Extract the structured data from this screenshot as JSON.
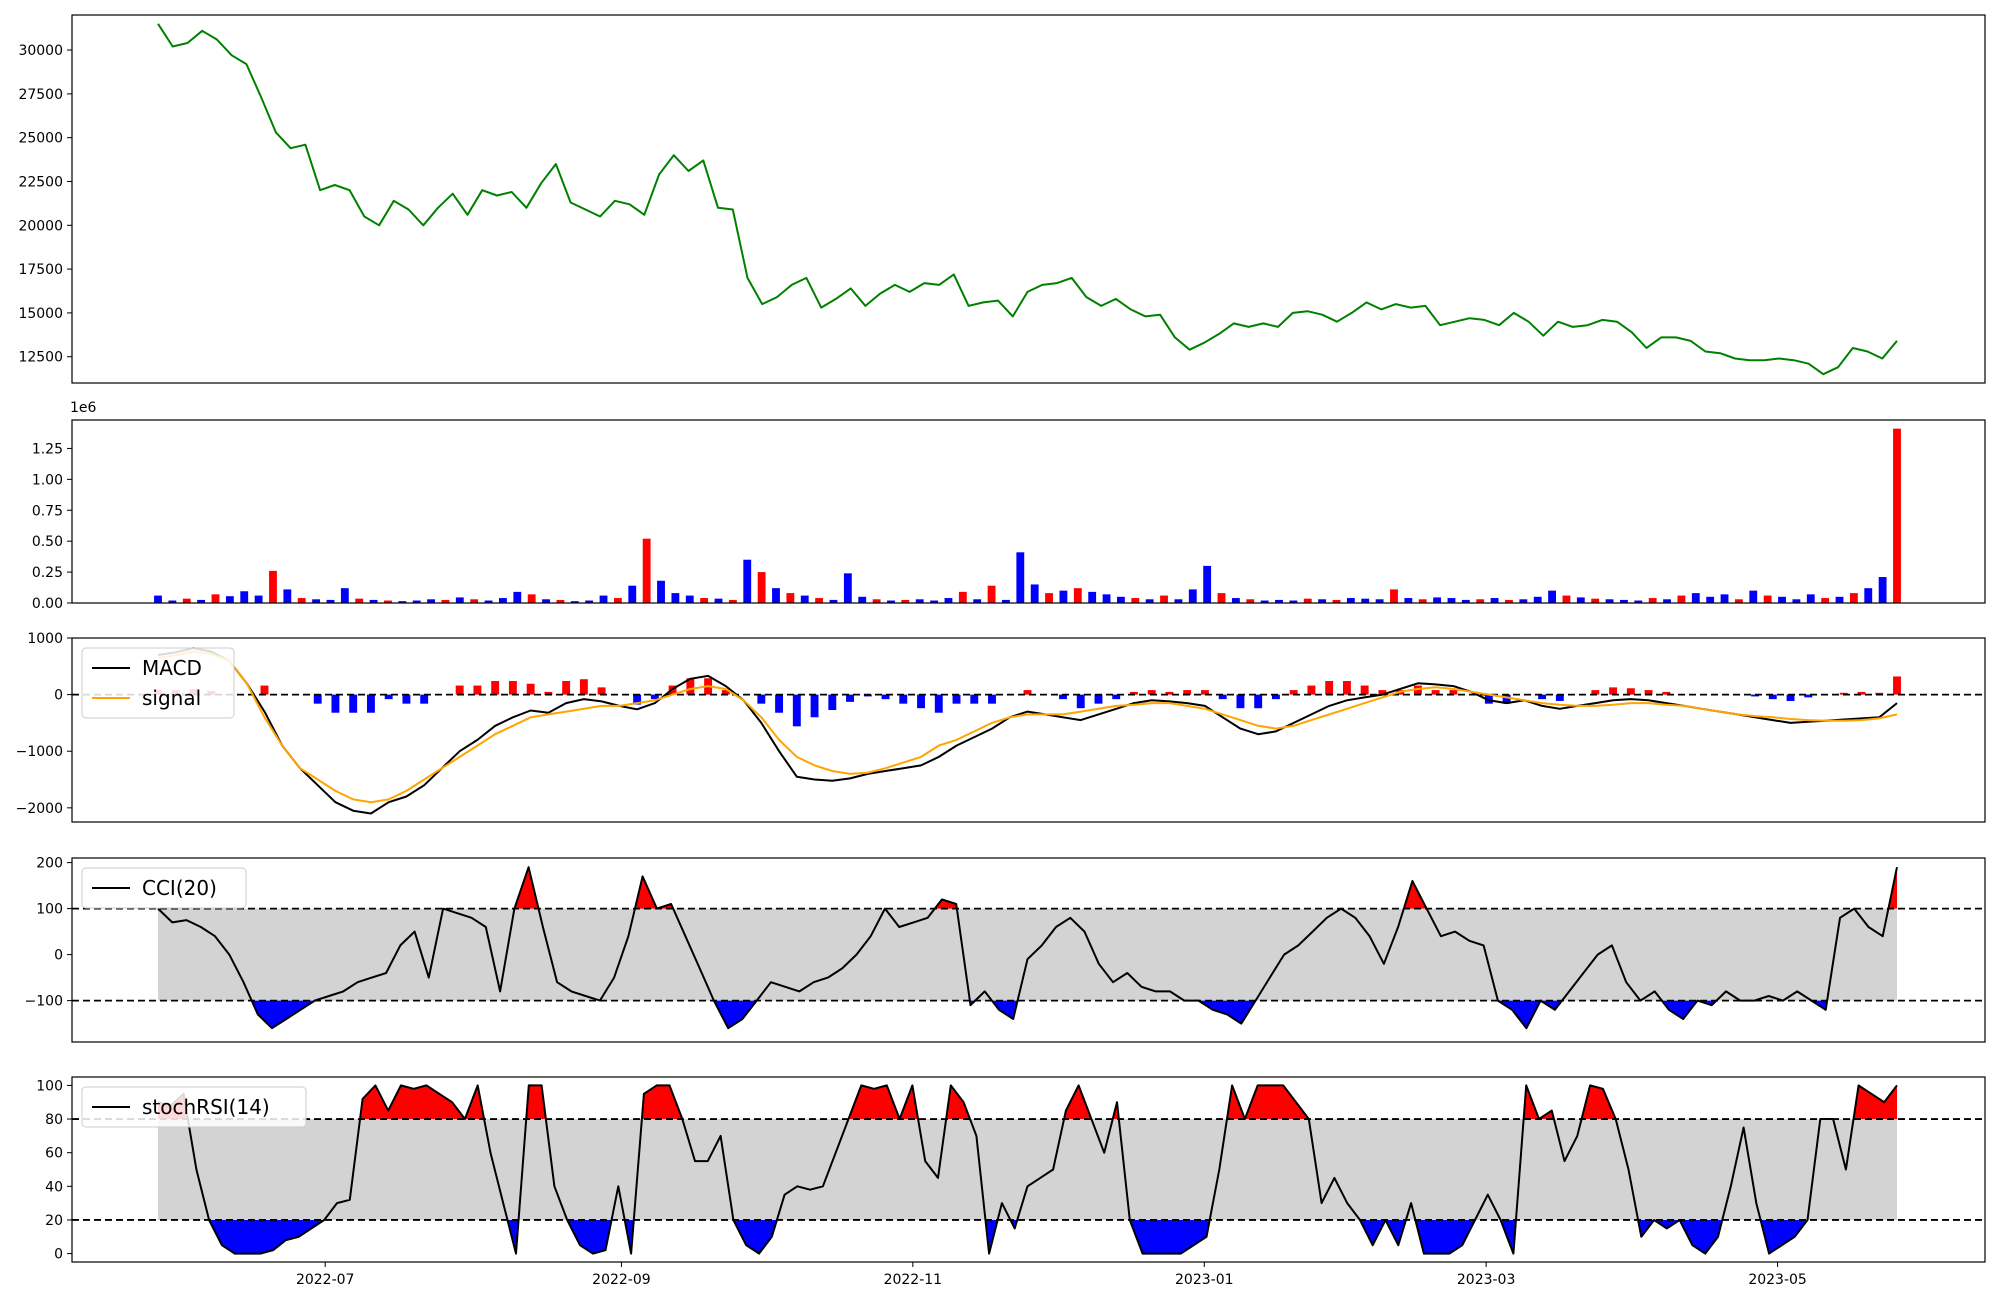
{
  "chart_data": [
    {
      "type": "line",
      "panel": "price",
      "series": [
        {
          "color": "#008000",
          "values": [
            31500,
            30200,
            30400,
            31100,
            30600,
            29700,
            29200,
            27300,
            25300,
            24400,
            24600,
            22000,
            22300,
            22000,
            20500,
            20000,
            21400,
            20900,
            20000,
            21000,
            21800,
            20600,
            22000,
            21700,
            21900,
            21000,
            22400,
            23500,
            21300,
            20900,
            20500,
            21400,
            21200,
            20600,
            22900,
            24000,
            23100,
            23700,
            21000,
            20900,
            17000,
            15500,
            15900,
            16600,
            17000,
            15300,
            15800,
            16400,
            15400,
            16100,
            16600,
            16200,
            16700,
            16600,
            17200,
            15400,
            15600,
            15700,
            14800,
            16200,
            16600,
            16700,
            17000,
            15900,
            15400,
            15800,
            15200,
            14800,
            14900,
            13600,
            12900,
            13300,
            13800,
            14400,
            14200,
            14400,
            14200,
            15000,
            15100,
            14900,
            14500,
            15000,
            15600,
            15200,
            15500,
            15300,
            15400,
            14300,
            14500,
            14700,
            14600,
            14300,
            15000,
            14500,
            13700,
            14500,
            14200,
            14300,
            14600,
            14500,
            13900,
            13000,
            13600,
            13600,
            13400,
            12800,
            12700,
            12400,
            12300,
            12300,
            12400,
            12300,
            12100,
            11500,
            11900,
            13000,
            12800,
            12400,
            13400
          ]
        }
      ],
      "x_date_range": [
        "2022-05-27",
        "2023-05-26"
      ],
      "ylim": [
        11000,
        32000
      ],
      "yticks": [
        12500,
        15000,
        17500,
        20000,
        22500,
        25000,
        27500,
        30000
      ]
    },
    {
      "type": "bar",
      "panel": "volume",
      "offset_label": "1e6",
      "colors": {
        "up": "#ff0000",
        "down": "#0000ff"
      },
      "values": [
        60000,
        20000,
        35000,
        25000,
        70000,
        55000,
        95000,
        60000,
        260000,
        110000,
        40000,
        30000,
        25000,
        120000,
        35000,
        25000,
        20000,
        15000,
        20000,
        30000,
        25000,
        45000,
        30000,
        20000,
        40000,
        90000,
        70000,
        30000,
        25000,
        15000,
        20000,
        60000,
        40000,
        140000,
        520000,
        180000,
        80000,
        60000,
        40000,
        35000,
        25000,
        350000,
        250000,
        120000,
        80000,
        60000,
        40000,
        25000,
        240000,
        50000,
        30000,
        20000,
        25000,
        30000,
        20000,
        40000,
        90000,
        30000,
        140000,
        25000,
        410000,
        150000,
        80000,
        100000,
        120000,
        90000,
        70000,
        50000,
        40000,
        30000,
        60000,
        30000,
        110000,
        300000,
        80000,
        40000,
        30000,
        20000,
        25000,
        20000,
        35000,
        30000,
        25000,
        40000,
        35000,
        30000,
        110000,
        40000,
        30000,
        45000,
        40000,
        25000,
        30000,
        40000,
        25000,
        30000,
        50000,
        100000,
        60000,
        45000,
        35000,
        30000,
        25000,
        20000,
        40000,
        30000,
        60000,
        80000,
        50000,
        70000,
        30000,
        100000,
        60000,
        50000,
        30000,
        70000,
        40000,
        50000,
        80000,
        120000,
        210000,
        1410000
      ],
      "ylim": [
        0,
        1480000
      ],
      "yticks": [
        0,
        250000,
        500000,
        750000,
        1000000,
        1250000
      ],
      "ytick_labels": [
        "0.00",
        "0.25",
        "0.50",
        "0.75",
        "1.00",
        "1.25"
      ]
    },
    {
      "type": "line",
      "panel": "macd",
      "legend": "upper-left",
      "series": [
        {
          "name": "MACD",
          "color": "#000000",
          "values": [
            700,
            750,
            820,
            760,
            600,
            200,
            -300,
            -900,
            -1300,
            -1600,
            -1900,
            -2050,
            -2100,
            -1900,
            -1800,
            -1600,
            -1300,
            -1000,
            -800,
            -550,
            -400,
            -280,
            -320,
            -150,
            -80,
            -120,
            -200,
            -260,
            -150,
            100,
            280,
            330,
            150,
            -100,
            -500,
            -1000,
            -1450,
            -1500,
            -1520,
            -1480,
            -1400,
            -1350,
            -1300,
            -1250,
            -1100,
            -900,
            -750,
            -600,
            -400,
            -300,
            -350,
            -400,
            -450,
            -350,
            -250,
            -150,
            -100,
            -120,
            -150,
            -200,
            -400,
            -600,
            -700,
            -650,
            -500,
            -350,
            -200,
            -100,
            -50,
            0,
            100,
            200,
            180,
            150,
            50,
            -100,
            -150,
            -100,
            -200,
            -250,
            -200,
            -150,
            -100,
            -80,
            -100,
            -150,
            -200,
            -250,
            -300,
            -350,
            -400,
            -450,
            -500,
            -480,
            -460,
            -440,
            -420,
            -400,
            -150
          ]
        },
        {
          "name": "signal",
          "color": "#ffa500",
          "values": [
            650,
            700,
            760,
            720,
            600,
            200,
            -400,
            -900,
            -1300,
            -1500,
            -1700,
            -1850,
            -1900,
            -1850,
            -1700,
            -1500,
            -1300,
            -1100,
            -900,
            -700,
            -550,
            -400,
            -350,
            -300,
            -250,
            -200,
            -200,
            -150,
            -100,
            0,
            100,
            150,
            100,
            -100,
            -400,
            -800,
            -1100,
            -1250,
            -1350,
            -1400,
            -1380,
            -1300,
            -1200,
            -1100,
            -900,
            -800,
            -650,
            -500,
            -400,
            -350,
            -350,
            -350,
            -300,
            -250,
            -200,
            -180,
            -150,
            -150,
            -200,
            -250,
            -350,
            -450,
            -550,
            -600,
            -550,
            -450,
            -350,
            -250,
            -150,
            -50,
            50,
            100,
            130,
            100,
            50,
            0,
            -50,
            -100,
            -150,
            -180,
            -200,
            -200,
            -180,
            -150,
            -150,
            -180,
            -200,
            -250,
            -300,
            -350,
            -380,
            -400,
            -430,
            -450,
            -460,
            -460,
            -450,
            -420,
            -350
          ]
        }
      ],
      "histogram_colors": {
        "positive": "#ff0000",
        "negative": "#0000ff"
      },
      "ylim": [
        -2250,
        1000
      ],
      "yticks": [
        -2000,
        -1000,
        0,
        1000
      ]
    },
    {
      "type": "line",
      "panel": "cci",
      "legend": "upper-left",
      "series": [
        {
          "name": "CCI(20)",
          "color": "#000000",
          "values": [
            100,
            70,
            75,
            60,
            40,
            0,
            -60,
            -130,
            -160,
            -140,
            -120,
            -100,
            -90,
            -80,
            -60,
            -50,
            -40,
            20,
            50,
            -50,
            100,
            90,
            80,
            60,
            -80,
            100,
            190,
            60,
            -60,
            -80,
            -90,
            -100,
            -50,
            40,
            170,
            100,
            110,
            40,
            -30,
            -100,
            -160,
            -140,
            -100,
            -60,
            -70,
            -80,
            -60,
            -50,
            -30,
            0,
            40,
            100,
            60,
            70,
            80,
            120,
            110,
            -110,
            -80,
            -120,
            -140,
            -10,
            20,
            60,
            80,
            50,
            -20,
            -60,
            -40,
            -70,
            -80,
            -80,
            -100,
            -100,
            -120,
            -130,
            -150,
            -100,
            -50,
            0,
            20,
            50,
            80,
            100,
            80,
            40,
            -20,
            60,
            160,
            100,
            40,
            50,
            30,
            20,
            -100,
            -120,
            -160,
            -100,
            -120,
            -80,
            -40,
            0,
            20,
            -60,
            -100,
            -80,
            -120,
            -140,
            -100,
            -110,
            -80,
            -100,
            -100,
            -90,
            -100,
            -80,
            -100,
            -120,
            80,
            100,
            60,
            40,
            190
          ]
        }
      ],
      "fill_colors": {
        "above": "#ff0000",
        "below": "#0000ff",
        "band": "#d3d3d3"
      },
      "thresholds": [
        100,
        -100
      ],
      "ylim": [
        -190,
        210
      ],
      "yticks": [
        -100,
        0,
        100,
        200
      ]
    },
    {
      "type": "line",
      "panel": "stochrsi",
      "legend": "upper-left",
      "series": [
        {
          "name": "stochRSI(14)",
          "color": "#000000",
          "values": [
            90,
            88,
            95,
            50,
            20,
            5,
            0,
            0,
            0,
            2,
            8,
            10,
            15,
            20,
            30,
            32,
            92,
            100,
            85,
            100,
            98,
            100,
            95,
            90,
            80,
            100,
            60,
            30,
            0,
            100,
            100,
            40,
            20,
            5,
            0,
            2,
            40,
            0,
            95,
            100,
            100,
            80,
            55,
            55,
            70,
            20,
            5,
            0,
            10,
            35,
            40,
            38,
            40,
            60,
            80,
            100,
            98,
            100,
            80,
            100,
            55,
            45,
            100,
            90,
            70,
            0,
            30,
            15,
            40,
            45,
            50,
            85,
            100,
            80,
            60,
            90,
            20,
            0,
            0,
            0,
            0,
            5,
            10,
            50,
            100,
            80,
            100,
            100,
            100,
            90,
            80,
            30,
            45,
            30,
            20,
            5,
            20,
            5,
            30,
            0,
            0,
            0,
            5,
            20,
            35,
            20,
            0,
            100,
            80,
            85,
            55,
            70,
            100,
            98,
            80,
            50,
            10,
            20,
            15,
            20,
            5,
            0,
            10,
            40,
            75,
            30,
            0,
            5,
            10,
            20,
            80,
            80,
            50,
            100,
            95,
            90,
            100
          ]
        }
      ],
      "fill_colors": {
        "above": "#ff0000",
        "below": "#0000ff",
        "band": "#d3d3d3"
      },
      "thresholds": [
        80,
        20
      ],
      "ylim": [
        -5,
        105
      ],
      "yticks": [
        0,
        20,
        40,
        60,
        80,
        100
      ]
    }
  ],
  "x_axis": {
    "tick_labels": [
      "2022-07",
      "2022-09",
      "2022-11",
      "2023-01",
      "2023-03",
      "2023-05"
    ]
  }
}
